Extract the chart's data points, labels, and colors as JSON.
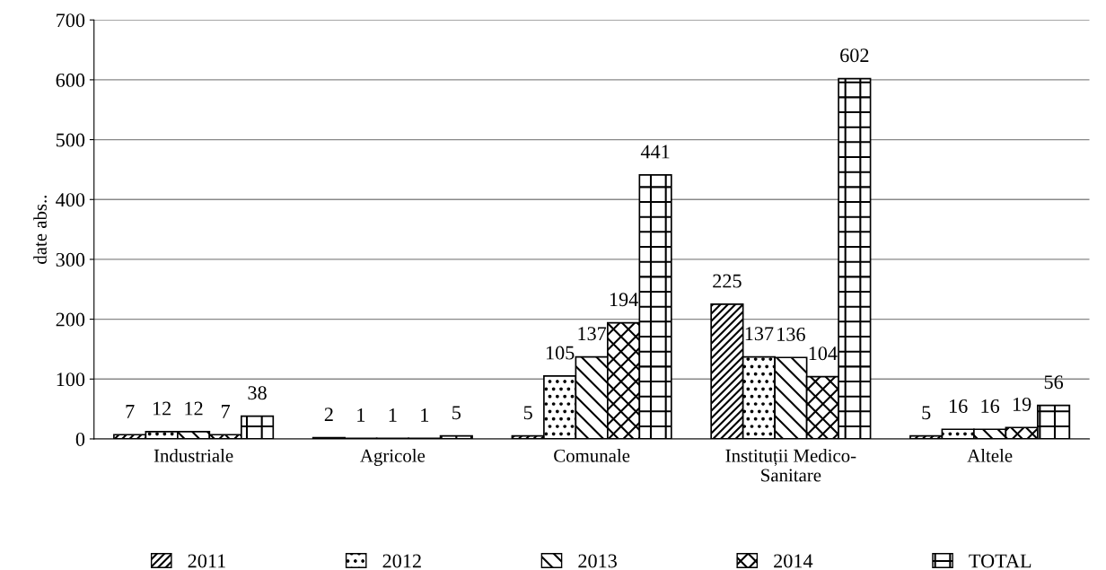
{
  "chart_data": {
    "type": "bar",
    "ylabel": "date abs..",
    "categories": [
      "Industriale",
      "Agricole",
      "Comunale",
      "Instituții Medico-\nSanitare",
      "Altele"
    ],
    "series": [
      {
        "name": "2011",
        "color": "#000000",
        "values": [
          7,
          2,
          5,
          225,
          5
        ]
      },
      {
        "name": "2012",
        "color": "#000000",
        "values": [
          12,
          1,
          105,
          137,
          16
        ]
      },
      {
        "name": "2013",
        "color": "#000000",
        "values": [
          12,
          1,
          137,
          136,
          16
        ]
      },
      {
        "name": "2014",
        "color": "#000000",
        "values": [
          7,
          1,
          194,
          104,
          19
        ]
      },
      {
        "name": "TOTAL",
        "color": "#000000",
        "values": [
          38,
          5,
          441,
          602,
          56
        ]
      }
    ],
    "ylim": [
      0,
      700
    ],
    "yticks": [
      0,
      100,
      200,
      300,
      400,
      500,
      600,
      700
    ],
    "grid": "y",
    "legend": "bottom",
    "data_labels": true
  }
}
